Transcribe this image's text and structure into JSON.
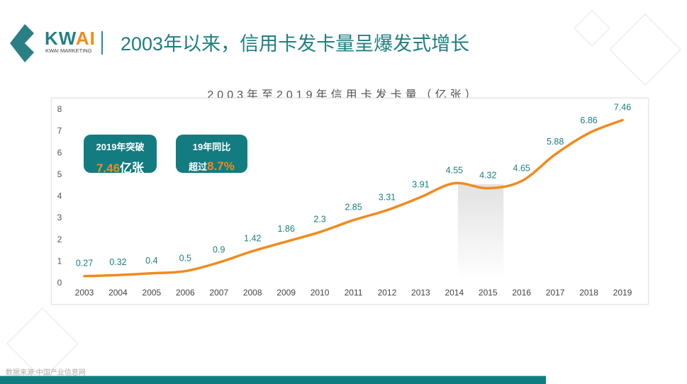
{
  "header": {
    "brand": "KW",
    "brand_accent": "AI",
    "brand_sub": "KWAI MARKETING",
    "title": "2003年以来，信用卡发卡量呈爆发式增长"
  },
  "badges": [
    {
      "top": "2019年突破",
      "value": "7.46",
      "suffix": "亿张"
    },
    {
      "top": "19年同比",
      "prefix": "超过",
      "value": "8.7%"
    }
  ],
  "source": "数据来源:中国产业信息网",
  "colors": {
    "accent": "#137c80",
    "line": "#f28a1c",
    "label": "#1a7f80"
  },
  "chart_data": {
    "type": "line",
    "title": "2003年至2019年信用卡发卡量（亿张）",
    "x": [
      "2003",
      "2004",
      "2005",
      "2006",
      "2007",
      "2008",
      "2009",
      "2010",
      "2011",
      "2012",
      "2013",
      "2014",
      "2015",
      "2016",
      "2017",
      "2018",
      "2019"
    ],
    "values": [
      0.27,
      0.32,
      0.4,
      0.5,
      0.9,
      1.42,
      1.86,
      2.3,
      2.85,
      3.31,
      3.91,
      4.55,
      4.32,
      4.65,
      5.88,
      6.86,
      7.46
    ],
    "labels": [
      "0.27",
      "0.32",
      "0.4",
      "0.5",
      "0.9",
      "1.42",
      "1.86",
      "2.3",
      "2.85",
      "3.31",
      "3.91",
      "4.55",
      "4.32",
      "4.65",
      "5.88",
      "6.86",
      "7.46"
    ],
    "yticks": [
      "0",
      "1",
      "2",
      "3",
      "4",
      "5",
      "6",
      "7",
      "8"
    ],
    "ylim": [
      0,
      8
    ],
    "highlight": [
      "2014",
      "2015"
    ],
    "grid": false,
    "smooth": true
  }
}
